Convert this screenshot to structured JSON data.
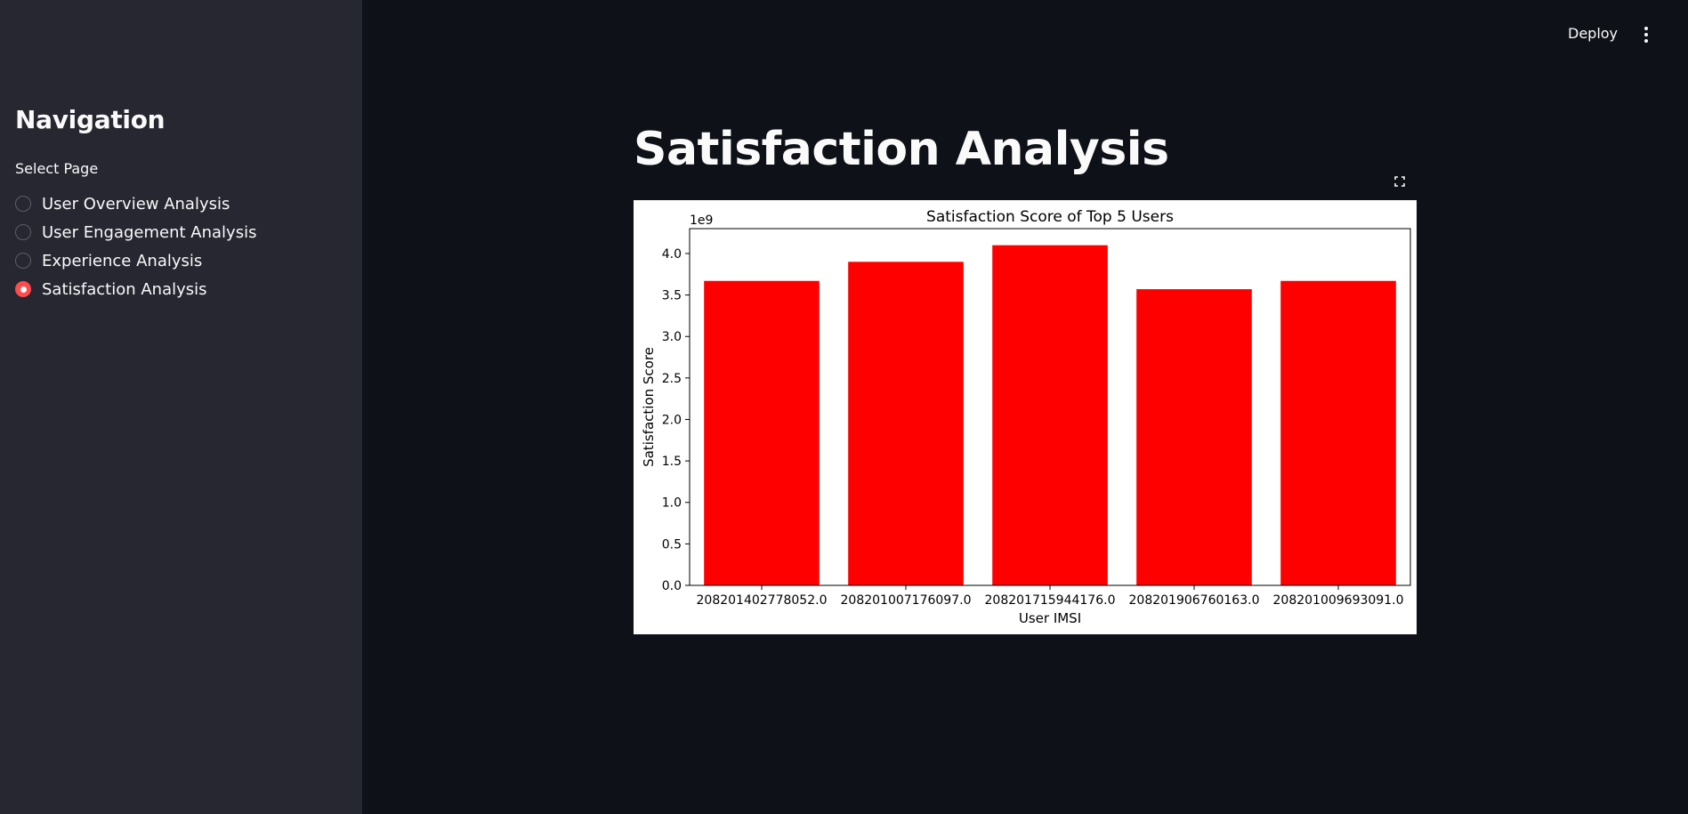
{
  "sidebar": {
    "heading": "Navigation",
    "select_label": "Select Page",
    "items": [
      {
        "label": "User Overview Analysis",
        "selected": false
      },
      {
        "label": "User Engagement Analysis",
        "selected": false
      },
      {
        "label": "Experience Analysis",
        "selected": false
      },
      {
        "label": "Satisfaction Analysis",
        "selected": true
      }
    ]
  },
  "header": {
    "deploy_label": "Deploy",
    "menu_icon": "vertical-ellipsis-icon"
  },
  "main": {
    "title": "Satisfaction Analysis",
    "fullscreen_icon": "fullscreen-icon"
  },
  "colors": {
    "accent": "#ff4b4b",
    "bar": "#ff0000",
    "sidebar_bg": "#262730",
    "main_bg": "#0e1117"
  },
  "chart_data": {
    "type": "bar",
    "title": "Satisfaction Score of Top 5 Users",
    "xlabel": "User IMSI",
    "ylabel": "Satisfaction Score",
    "y_multiplier_label": "1e9",
    "categories": [
      "208201402778052.0",
      "208201007176097.0",
      "208201715944176.0",
      "208201906760163.0",
      "208201009693091.0"
    ],
    "values": [
      3.67,
      3.9,
      4.1,
      3.57,
      3.67
    ],
    "ylim": [
      0,
      4.3
    ],
    "yticks": [
      "0.0",
      "0.5",
      "1.0",
      "1.5",
      "2.0",
      "2.5",
      "3.0",
      "3.5",
      "4.0"
    ],
    "grid": false
  }
}
